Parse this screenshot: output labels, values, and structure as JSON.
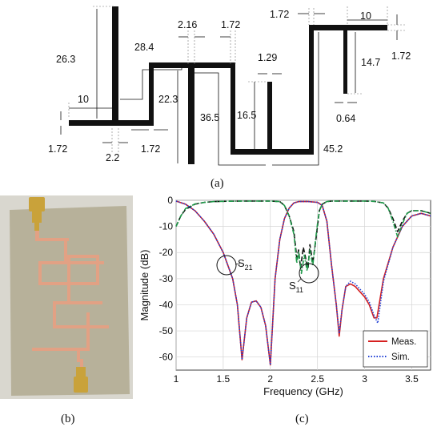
{
  "diagram": {
    "dimensions": [
      "26.3",
      "10",
      "1.72",
      "2.2",
      "28.4",
      "2.16",
      "1.72",
      "22.3",
      "1.72",
      "36.5",
      "1.29",
      "16.5",
      "1.72",
      "10",
      "14.7",
      "1.72",
      "0.64",
      "45.2"
    ],
    "caption": "(a)"
  },
  "photo": {
    "caption": "(b)",
    "colors": {
      "board": "#b7b19a",
      "copper": "#e2a184",
      "connector": "#c9a23a"
    }
  },
  "chart_caption": "(c)",
  "chart_data": {
    "type": "line",
    "xlabel": "Frequency (GHz)",
    "ylabel": "Magnitude (dB)",
    "xlim": [
      1,
      3.7
    ],
    "ylim": [
      -65,
      0
    ],
    "xticks": [
      "1",
      "1.5",
      "2",
      "2.5",
      "3",
      "3.5"
    ],
    "yticks": [
      "0",
      "-10",
      "-20",
      "-30",
      "-40",
      "-50",
      "-60"
    ],
    "grid": true,
    "legend": {
      "position": "bottom-right",
      "entries": [
        "Meas.",
        "Sim."
      ]
    },
    "annotations": [
      {
        "text": "S",
        "sub": "21"
      },
      {
        "text": "S",
        "sub": "11"
      }
    ],
    "series": [
      {
        "name": "Meas.",
        "style": "solid",
        "color": "#d62020",
        "x": [
          1.0,
          1.1,
          1.2,
          1.3,
          1.4,
          1.5,
          1.6,
          1.65,
          1.7,
          1.75,
          1.8,
          1.85,
          1.9,
          1.95,
          2.0,
          2.05,
          2.1,
          2.15,
          2.2,
          2.25,
          2.3,
          2.4,
          2.5,
          2.55,
          2.6,
          2.65,
          2.7,
          2.73,
          2.76,
          2.8,
          2.85,
          2.9,
          2.95,
          3.0,
          3.05,
          3.1,
          3.13,
          3.2,
          3.3,
          3.4,
          3.5,
          3.6,
          3.7
        ],
        "y": [
          -0.3,
          -1.5,
          -4,
          -8,
          -13,
          -20,
          -30,
          -40,
          -61,
          -45,
          -39,
          -38.5,
          -41,
          -48,
          -63,
          -30,
          -15,
          -7,
          -3,
          -1,
          -0.5,
          -0.5,
          -0.8,
          -2,
          -8,
          -25,
          -40,
          -52,
          -42,
          -33,
          -32,
          -33,
          -35,
          -37,
          -40,
          -45,
          -45,
          -30,
          -18,
          -10,
          -6,
          -5,
          -6
        ]
      },
      {
        "name": "",
        "style": "dashed",
        "color": "#111111",
        "x": [
          1.0,
          1.05,
          1.1,
          1.2,
          1.3,
          1.4,
          1.5,
          1.7,
          1.9,
          2.0,
          2.1,
          2.15,
          2.2,
          2.25,
          2.28,
          2.3,
          2.32,
          2.35,
          2.38,
          2.4,
          2.42,
          2.45,
          2.48,
          2.5,
          2.52,
          2.55,
          2.6,
          2.65,
          2.7,
          2.8,
          2.9,
          3.0,
          3.1,
          3.2,
          3.25,
          3.3,
          3.35,
          3.4,
          3.45,
          3.5,
          3.6,
          3.7
        ],
        "y": [
          -10,
          -6,
          -3.5,
          -1.5,
          -0.8,
          -0.5,
          -0.4,
          -0.3,
          -0.3,
          -0.3,
          -0.5,
          -2,
          -6,
          -12,
          -22,
          -19,
          -26,
          -18,
          -23,
          -26,
          -17,
          -24,
          -16,
          -10,
          -4,
          -1.5,
          -0.5,
          -0.3,
          -0.3,
          -0.3,
          -0.3,
          -0.3,
          -0.4,
          -1,
          -3,
          -7,
          -12,
          -8,
          -5,
          -4,
          -4,
          -5
        ]
      },
      {
        "name": "Sim.",
        "style": "dotted",
        "color": "#1f3fd6",
        "x": [
          1.0,
          1.1,
          1.2,
          1.3,
          1.4,
          1.5,
          1.6,
          1.65,
          1.7,
          1.75,
          1.8,
          1.85,
          1.9,
          1.95,
          2.0,
          2.05,
          2.1,
          2.15,
          2.2,
          2.25,
          2.3,
          2.4,
          2.5,
          2.55,
          2.6,
          2.65,
          2.7,
          2.73,
          2.76,
          2.8,
          2.85,
          2.9,
          2.95,
          3.0,
          3.05,
          3.1,
          3.14,
          3.2,
          3.3,
          3.4,
          3.5,
          3.6,
          3.7
        ],
        "y": [
          -0.3,
          -1.5,
          -4,
          -8,
          -13,
          -20,
          -30,
          -40,
          -61,
          -45,
          -39,
          -38.5,
          -41,
          -48,
          -63,
          -30,
          -15,
          -7,
          -3,
          -1,
          -0.5,
          -0.5,
          -0.8,
          -2,
          -8,
          -25,
          -40,
          -51,
          -42,
          -33,
          -31,
          -32,
          -34,
          -36,
          -39,
          -44,
          -47,
          -31,
          -18,
          -10,
          -6,
          -5,
          -6
        ]
      },
      {
        "name": "",
        "style": "dashdot",
        "color": "#1f9a4a",
        "x": [
          1.0,
          1.05,
          1.1,
          1.2,
          1.3,
          1.4,
          1.5,
          1.7,
          1.9,
          2.0,
          2.1,
          2.15,
          2.2,
          2.25,
          2.28,
          2.3,
          2.33,
          2.36,
          2.39,
          2.42,
          2.45,
          2.48,
          2.5,
          2.52,
          2.55,
          2.6,
          2.65,
          2.7,
          2.8,
          2.9,
          3.0,
          3.1,
          3.2,
          3.25,
          3.3,
          3.35,
          3.4,
          3.45,
          3.5,
          3.6,
          3.7
        ],
        "y": [
          -10,
          -6,
          -3.2,
          -1.4,
          -0.8,
          -0.5,
          -0.4,
          -0.3,
          -0.3,
          -0.3,
          -0.5,
          -2,
          -6,
          -13,
          -24,
          -20,
          -28,
          -21,
          -27,
          -19,
          -25,
          -15,
          -9,
          -4,
          -1.5,
          -0.5,
          -0.3,
          -0.3,
          -0.3,
          -0.3,
          -0.3,
          -0.4,
          -1,
          -3,
          -8,
          -14,
          -9,
          -5,
          -4,
          -4,
          -5
        ]
      }
    ]
  }
}
